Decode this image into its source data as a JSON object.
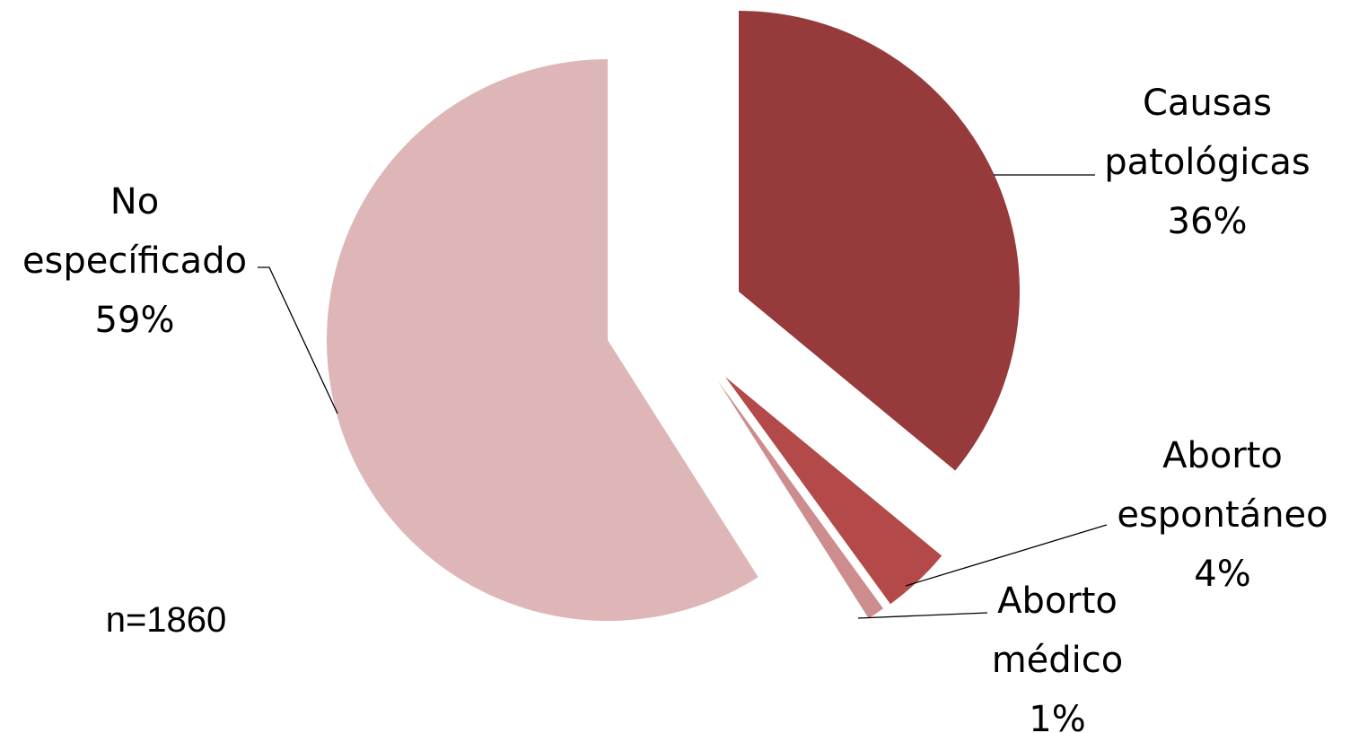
{
  "chart_data": {
    "type": "pie",
    "title": "",
    "note": "n=1860",
    "slices": [
      {
        "label_lines": [
          "Causas",
          "patológicas"
        ],
        "pct_label": "36%",
        "value": 36,
        "color": "#963A3B"
      },
      {
        "label_lines": [
          "Aborto",
          "espontáneo"
        ],
        "pct_label": "4%",
        "value": 4,
        "color": "#B34A49"
      },
      {
        "label_lines": [
          "Aborto",
          "médico"
        ],
        "pct_label": "1%",
        "value": 1,
        "color": "#CD8D8E"
      },
      {
        "label_lines": [
          "No",
          "específicado"
        ],
        "pct_label": "59%",
        "value": 59,
        "color": "#DEB6B7"
      }
    ],
    "exploded": true,
    "legend": "none"
  }
}
